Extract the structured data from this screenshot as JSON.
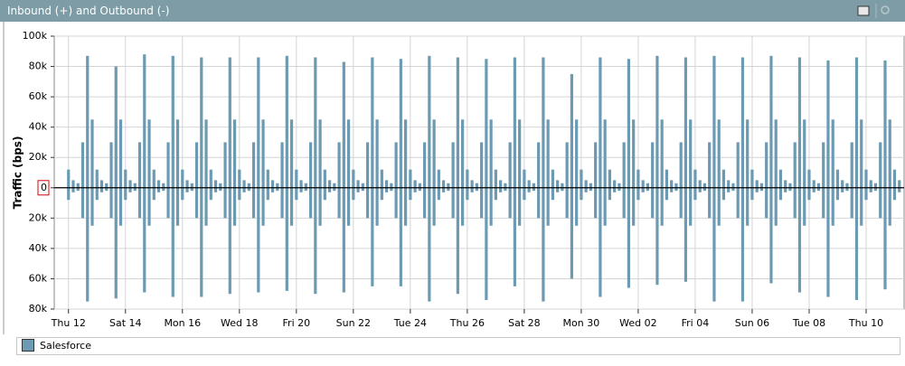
{
  "chart_data": {
    "type": "bar",
    "title": "Inbound (+) and Outbound (-)",
    "y_label": "Traffic (bps)",
    "xlim": [
      -12,
      704
    ],
    "xticks": [
      {
        "value": 0,
        "label": "Thu 12"
      },
      {
        "value": 48,
        "label": "Sat 14"
      },
      {
        "value": 96,
        "label": "Mon 16"
      },
      {
        "value": 144,
        "label": "Wed 18"
      },
      {
        "value": 192,
        "label": "Fri 20"
      },
      {
        "value": 240,
        "label": "Sun 22"
      },
      {
        "value": 288,
        "label": "Tue 24"
      },
      {
        "value": 336,
        "label": "Thu 26"
      },
      {
        "value": 384,
        "label": "Sat 28"
      },
      {
        "value": 432,
        "label": "Mon 30"
      },
      {
        "value": 480,
        "label": "Wed 02"
      },
      {
        "value": 528,
        "label": "Fri 04"
      },
      {
        "value": 576,
        "label": "Sun 06"
      },
      {
        "value": 624,
        "label": "Tue 08"
      },
      {
        "value": 672,
        "label": "Thu 10"
      }
    ],
    "ylim": [
      -80000,
      100000
    ],
    "yticks": [
      {
        "value": 100000,
        "label": "100k"
      },
      {
        "value": 80000,
        "label": "80k"
      },
      {
        "value": 60000,
        "label": "60k"
      },
      {
        "value": 40000,
        "label": "40k"
      },
      {
        "value": 20000,
        "label": "20k"
      },
      0,
      {
        "value": -20000,
        "label": "20k"
      },
      {
        "value": -40000,
        "label": "40k"
      },
      {
        "value": -60000,
        "label": "60k"
      },
      {
        "value": -80000,
        "label": "80k"
      }
    ],
    "grid": true,
    "x": [
      0,
      4,
      8,
      12,
      16,
      20,
      24,
      28,
      32,
      36,
      40,
      44,
      48,
      52,
      56,
      60,
      64,
      68,
      72,
      76,
      80,
      84,
      88,
      92,
      96,
      100,
      104,
      108,
      112,
      116,
      120,
      124,
      128,
      132,
      136,
      140,
      144,
      148,
      152,
      156,
      160,
      164,
      168,
      172,
      176,
      180,
      184,
      188,
      192,
      196,
      200,
      204,
      208,
      212,
      216,
      220,
      224,
      228,
      232,
      236,
      240,
      244,
      248,
      252,
      256,
      260,
      264,
      268,
      272,
      276,
      280,
      284,
      288,
      292,
      296,
      300,
      304,
      308,
      312,
      316,
      320,
      324,
      328,
      332,
      336,
      340,
      344,
      348,
      352,
      356,
      360,
      364,
      368,
      372,
      376,
      380,
      384,
      388,
      392,
      396,
      400,
      404,
      408,
      412,
      416,
      420,
      424,
      428,
      432,
      436,
      440,
      444,
      448,
      452,
      456,
      460,
      464,
      468,
      472,
      476,
      480,
      484,
      488,
      492,
      496,
      500,
      504,
      508,
      512,
      516,
      520,
      524,
      528,
      532,
      536,
      540,
      544,
      548,
      552,
      556,
      560,
      564,
      568,
      572,
      576,
      580,
      584,
      588,
      592,
      596,
      600,
      604,
      608,
      612,
      616,
      620,
      624,
      628,
      632,
      636,
      640,
      644,
      648,
      652,
      656,
      660,
      664,
      668,
      672,
      676,
      680,
      684,
      688,
      692,
      696,
      700
    ],
    "series": [
      {
        "name": "Salesforce",
        "color": "#6b9ab2",
        "values": [
          12000,
          5000,
          3000,
          30000,
          87000,
          45000,
          12000,
          5000,
          3000,
          30000,
          80000,
          45000,
          12000,
          5000,
          3000,
          30000,
          88000,
          45000,
          12000,
          5000,
          3000,
          30000,
          87000,
          45000,
          12000,
          5000,
          3000,
          30000,
          86000,
          45000,
          12000,
          5000,
          3000,
          30000,
          86000,
          45000,
          12000,
          5000,
          3000,
          30000,
          86000,
          45000,
          12000,
          5000,
          3000,
          30000,
          87000,
          45000,
          12000,
          5000,
          3000,
          30000,
          86000,
          45000,
          12000,
          5000,
          3000,
          30000,
          83000,
          45000,
          12000,
          5000,
          3000,
          30000,
          86000,
          45000,
          12000,
          5000,
          3000,
          30000,
          85000,
          45000,
          12000,
          5000,
          3000,
          30000,
          87000,
          45000,
          12000,
          5000,
          3000,
          30000,
          86000,
          45000,
          12000,
          5000,
          3000,
          30000,
          85000,
          45000,
          12000,
          5000,
          3000,
          30000,
          86000,
          45000,
          12000,
          5000,
          3000,
          30000,
          86000,
          45000,
          12000,
          5000,
          3000,
          30000,
          75000,
          45000,
          12000,
          5000,
          3000,
          30000,
          86000,
          45000,
          12000,
          5000,
          3000,
          30000,
          85000,
          45000,
          12000,
          5000,
          3000,
          30000,
          87000,
          45000,
          12000,
          5000,
          3000,
          30000,
          86000,
          45000,
          12000,
          5000,
          3000,
          30000,
          87000,
          45000,
          12000,
          5000,
          3000,
          30000,
          86000,
          45000,
          12000,
          5000,
          3000,
          30000,
          87000,
          45000,
          12000,
          5000,
          3000,
          30000,
          86000,
          45000,
          12000,
          5000,
          3000,
          30000,
          84000,
          45000,
          12000,
          5000,
          3000,
          30000,
          86000,
          45000,
          12000,
          5000,
          3000,
          30000,
          84000,
          45000,
          12000,
          5000
        ],
        "outbound": [
          -8000,
          -3000,
          -2000,
          -20000,
          -75000,
          -25000,
          -8000,
          -3000,
          -2000,
          -20000,
          -73000,
          -25000,
          -8000,
          -3000,
          -2000,
          -20000,
          -69000,
          -25000,
          -8000,
          -3000,
          -2000,
          -20000,
          -72000,
          -25000,
          -8000,
          -3000,
          -2000,
          -20000,
          -72000,
          -25000,
          -8000,
          -3000,
          -2000,
          -20000,
          -70000,
          -25000,
          -8000,
          -3000,
          -2000,
          -20000,
          -69000,
          -25000,
          -8000,
          -3000,
          -2000,
          -20000,
          -68000,
          -25000,
          -8000,
          -3000,
          -2000,
          -20000,
          -70000,
          -25000,
          -8000,
          -3000,
          -2000,
          -20000,
          -69000,
          -25000,
          -8000,
          -3000,
          -2000,
          -20000,
          -65000,
          -25000,
          -8000,
          -3000,
          -2000,
          -20000,
          -65000,
          -25000,
          -8000,
          -3000,
          -2000,
          -20000,
          -75000,
          -25000,
          -8000,
          -3000,
          -2000,
          -20000,
          -70000,
          -25000,
          -8000,
          -3000,
          -2000,
          -20000,
          -74000,
          -25000,
          -8000,
          -3000,
          -2000,
          -20000,
          -65000,
          -25000,
          -8000,
          -3000,
          -2000,
          -20000,
          -75000,
          -25000,
          -8000,
          -3000,
          -2000,
          -20000,
          -60000,
          -25000,
          -8000,
          -3000,
          -2000,
          -20000,
          -72000,
          -25000,
          -8000,
          -3000,
          -2000,
          -20000,
          -66000,
          -25000,
          -8000,
          -3000,
          -2000,
          -20000,
          -64000,
          -25000,
          -8000,
          -3000,
          -2000,
          -20000,
          -62000,
          -25000,
          -8000,
          -3000,
          -2000,
          -20000,
          -75000,
          -25000,
          -8000,
          -3000,
          -2000,
          -20000,
          -75000,
          -25000,
          -8000,
          -3000,
          -2000,
          -20000,
          -63000,
          -25000,
          -8000,
          -3000,
          -2000,
          -20000,
          -69000,
          -25000,
          -8000,
          -3000,
          -2000,
          -20000,
          -72000,
          -25000,
          -8000,
          -3000,
          -2000,
          -20000,
          -74000,
          -25000,
          -8000,
          -3000,
          -2000,
          -20000,
          -67000,
          -25000,
          -8000,
          -3000
        ]
      }
    ]
  }
}
